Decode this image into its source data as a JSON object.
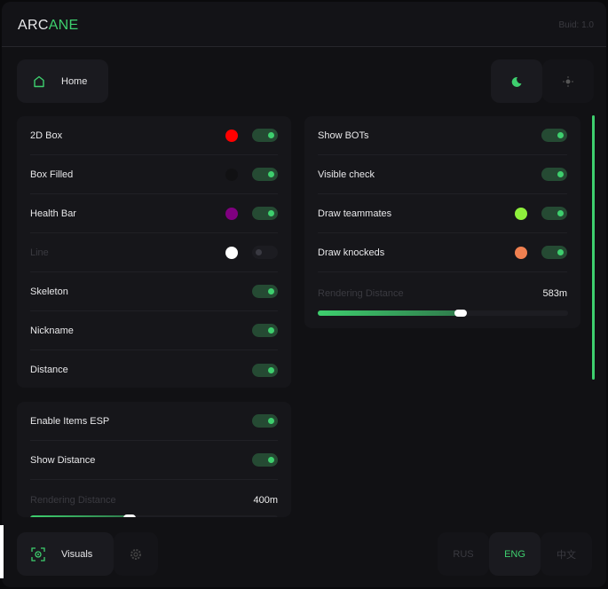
{
  "header": {
    "logo_white": "ARC",
    "logo_green": "ANE",
    "build": "Buid: 1.0"
  },
  "nav": {
    "home": "Home",
    "visuals": "Visuals",
    "settings_icon": "gear-icon",
    "theme_dark_icon": "moon-icon",
    "theme_light_icon": "sun-icon"
  },
  "lang": {
    "items": [
      "RUS",
      "ENG",
      "中文"
    ],
    "active": "ENG"
  },
  "colors": {
    "accent": "#3ecf6e"
  },
  "player_esp": {
    "rows": [
      {
        "label": "2D Box",
        "color": "#ff0000",
        "on": true
      },
      {
        "label": "Box Filled",
        "color": "#111113",
        "on": true
      },
      {
        "label": "Health Bar",
        "color": "#800080",
        "on": true
      },
      {
        "label": "Line",
        "color": "#ffffff",
        "on": false
      },
      {
        "label": "Skeleton",
        "on": true
      },
      {
        "label": "Nickname",
        "on": true
      },
      {
        "label": "Distance",
        "on": true
      }
    ]
  },
  "items_esp": {
    "rows": [
      {
        "label": "Enable Items ESP",
        "on": true
      },
      {
        "label": "Show Distance",
        "on": true
      }
    ],
    "slider": {
      "label": "Rendering Distance",
      "value": "400m",
      "fraction": 0.4
    }
  },
  "bots": {
    "rows": [
      {
        "label": "Show BOTs",
        "on": true
      },
      {
        "label": "Visible check",
        "on": true
      },
      {
        "label": "Draw teammates",
        "color": "#8ef03c",
        "on": true
      },
      {
        "label": "Draw knockeds",
        "color": "#f08050",
        "on": true
      }
    ],
    "slider": {
      "label": "Rendering Distance",
      "value": "583m",
      "fraction": 0.57
    }
  }
}
